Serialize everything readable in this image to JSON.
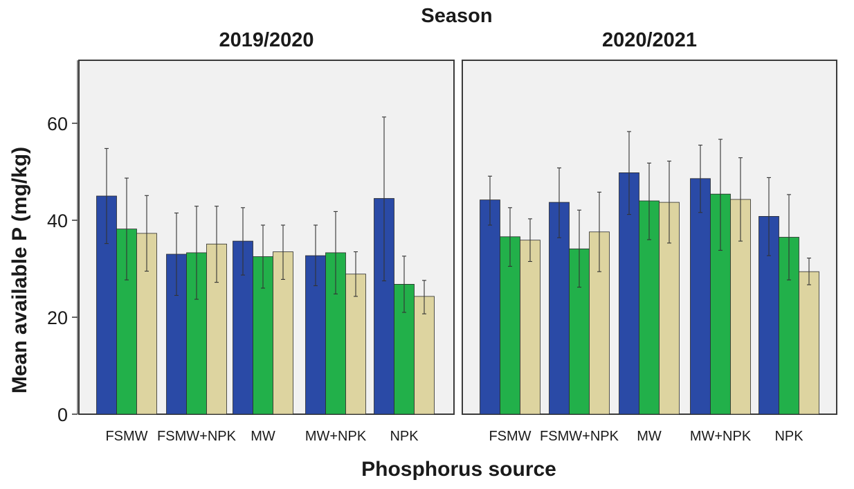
{
  "chart_data": {
    "type": "bar",
    "title": "Season",
    "xlabel": "Phosphorus source",
    "ylabel": "Mean available P (mg/kg)",
    "ylim": [
      0,
      73
    ],
    "yticks": [
      0,
      20,
      40,
      60
    ],
    "grid": false,
    "legend": "none",
    "categories": [
      "FSMW",
      "FSMW+NPK",
      "MW",
      "MW+NPK",
      "NPK"
    ],
    "colors": [
      "#2a4aa6",
      "#22b04a",
      "#ddd4a0"
    ],
    "panels": [
      {
        "title": "2019/2020",
        "series": [
          {
            "values": [
              45.0,
              33.0,
              35.7,
              32.7,
              44.5
            ],
            "err_low": [
              35.2,
              24.5,
              28.7,
              26.5,
              27.5
            ],
            "err_high": [
              54.8,
              41.5,
              42.6,
              39.0,
              61.3
            ]
          },
          {
            "values": [
              38.2,
              33.3,
              32.5,
              33.3,
              26.8
            ],
            "err_low": [
              27.7,
              23.7,
              26.0,
              24.8,
              21.0
            ],
            "err_high": [
              48.7,
              42.9,
              39.0,
              41.8,
              32.6
            ]
          },
          {
            "values": [
              37.3,
              35.1,
              33.5,
              28.9,
              24.3
            ],
            "err_low": [
              29.5,
              27.2,
              27.8,
              24.3,
              20.7
            ],
            "err_high": [
              45.1,
              42.9,
              39.0,
              33.5,
              27.6
            ]
          }
        ]
      },
      {
        "title": "2020/2021",
        "series": [
          {
            "values": [
              44.2,
              43.7,
              49.8,
              48.6,
              40.8
            ],
            "err_low": [
              39.0,
              36.4,
              41.2,
              41.6,
              32.7
            ],
            "err_high": [
              49.1,
              50.8,
              58.3,
              55.5,
              48.8
            ]
          },
          {
            "values": [
              36.6,
              34.1,
              44.0,
              45.4,
              36.5
            ],
            "err_low": [
              30.5,
              26.2,
              36.0,
              33.8,
              27.7
            ],
            "err_high": [
              42.6,
              42.1,
              51.8,
              56.7,
              45.3
            ]
          },
          {
            "values": [
              35.9,
              37.6,
              43.7,
              44.3,
              29.4
            ],
            "err_low": [
              31.5,
              29.4,
              35.3,
              35.7,
              26.7
            ],
            "err_high": [
              40.3,
              45.8,
              52.2,
              52.9,
              32.2
            ]
          }
        ]
      }
    ]
  }
}
